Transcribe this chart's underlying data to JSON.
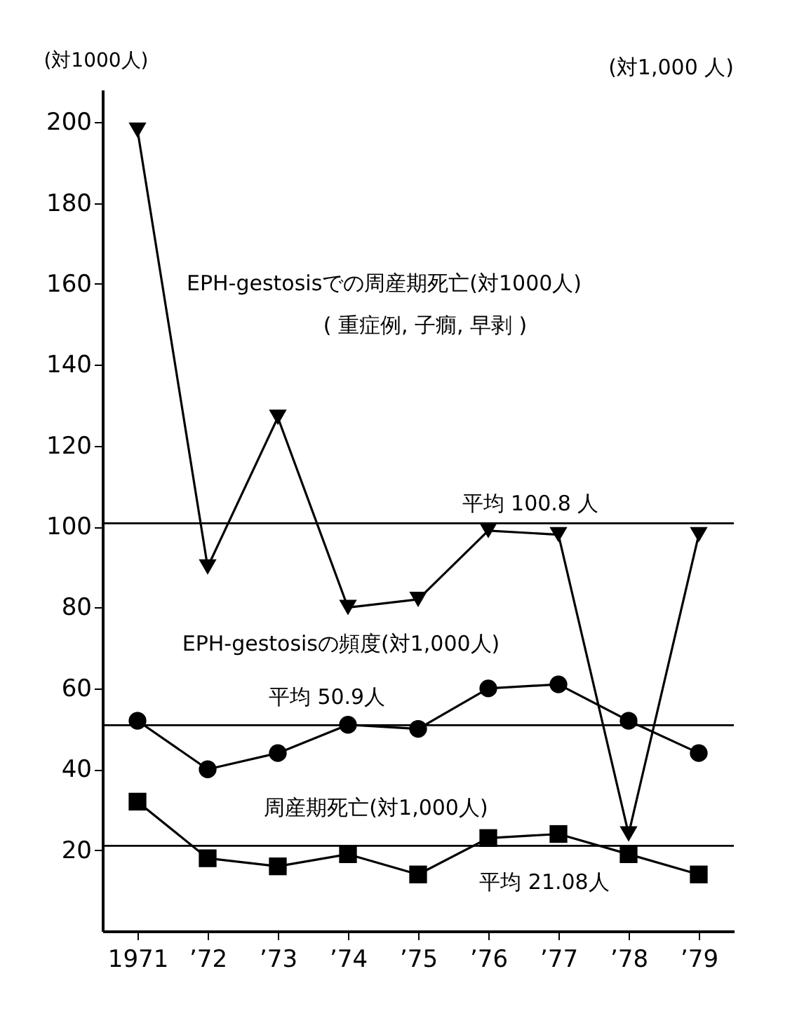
{
  "chart_data": {
    "type": "line",
    "ylabel": "(対1000人)",
    "categories": [
      "1971",
      "’72",
      "’73",
      "’74",
      "’75",
      "’76",
      "’77",
      "’78",
      "’79"
    ],
    "series": [
      {
        "name": "EPH-gestosisでの周産期死亡(対1000人)",
        "color": "#000000",
        "marker": "triangle",
        "values": [
          198,
          90,
          127,
          80,
          82,
          99,
          98,
          24,
          98
        ]
      },
      {
        "name": "EPH-gestosisの頻度(対1,000人)",
        "color": "#000000",
        "marker": "circle",
        "values": [
          52,
          40,
          44,
          51,
          50,
          60,
          61,
          52,
          44
        ]
      },
      {
        "name": "周産期死亡(対1,000人)",
        "color": "#000000",
        "marker": "square",
        "values": [
          32,
          18,
          16,
          19,
          14,
          23,
          24,
          19,
          14
        ]
      }
    ],
    "ref_lines": [
      {
        "axis": "y",
        "value": 100.8,
        "label": "平均 100.8 人"
      },
      {
        "axis": "y",
        "value": 50.9,
        "label": "平均 50.9人"
      },
      {
        "axis": "y",
        "value": 21.08,
        "label": "平均 21.08人"
      }
    ],
    "annotations": [
      "( 重症例, 子癇, 早剥 )",
      "(対1,000 人)"
    ],
    "ylim": [
      0,
      208
    ],
    "yticks": [
      20,
      40,
      60,
      80,
      100,
      120,
      140,
      160,
      180,
      200
    ],
    "grid": false
  }
}
